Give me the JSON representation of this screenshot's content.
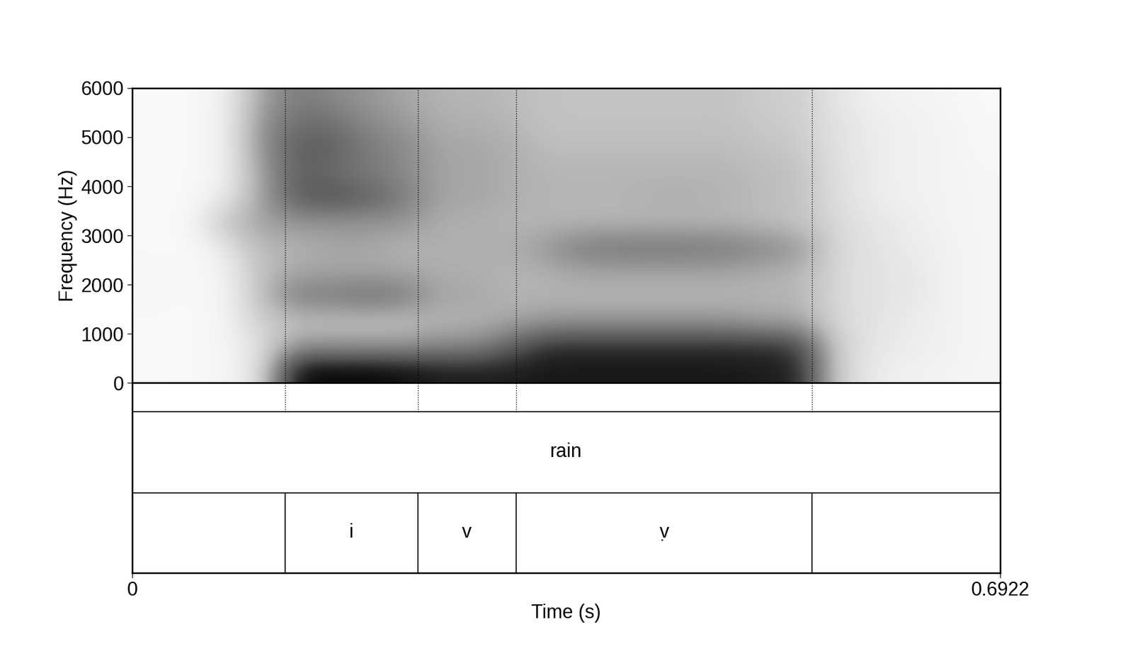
{
  "chart_data": {
    "type": "spectrogram",
    "xlabel": "Time (s)",
    "ylabel": "Frequency (Hz)",
    "xlim": [
      0,
      0.6922
    ],
    "ylim": [
      0,
      6000
    ],
    "xticks": [
      0,
      0.6922
    ],
    "yticks": [
      0,
      1000,
      2000,
      3000,
      4000,
      5000,
      6000
    ],
    "color": "Greys",
    "cell_range": [
      0,
      1
    ],
    "cells": [
      [
        0.05,
        0.05,
        0.08,
        0.2,
        0.95,
        0.98,
        0.98,
        0.95,
        0.9,
        0.9,
        0.9,
        0.92,
        0.92,
        0.92,
        0.92,
        0.92,
        0.92,
        0.9,
        0.88,
        0.3,
        0.15,
        0.12,
        0.1,
        0.08
      ],
      [
        0.05,
        0.05,
        0.08,
        0.2,
        0.5,
        0.5,
        0.5,
        0.5,
        0.55,
        0.55,
        0.7,
        0.85,
        0.85,
        0.85,
        0.85,
        0.85,
        0.85,
        0.85,
        0.8,
        0.3,
        0.18,
        0.15,
        0.12,
        0.08
      ],
      [
        0.05,
        0.05,
        0.08,
        0.3,
        0.35,
        0.35,
        0.35,
        0.35,
        0.4,
        0.4,
        0.45,
        0.5,
        0.5,
        0.5,
        0.5,
        0.5,
        0.5,
        0.45,
        0.45,
        0.25,
        0.2,
        0.15,
        0.12,
        0.08
      ],
      [
        0.08,
        0.05,
        0.08,
        0.35,
        0.6,
        0.6,
        0.65,
        0.6,
        0.45,
        0.45,
        0.4,
        0.4,
        0.4,
        0.4,
        0.4,
        0.4,
        0.4,
        0.4,
        0.4,
        0.25,
        0.2,
        0.18,
        0.12,
        0.08
      ],
      [
        0.08,
        0.05,
        0.1,
        0.35,
        0.45,
        0.45,
        0.45,
        0.45,
        0.42,
        0.42,
        0.4,
        0.42,
        0.45,
        0.45,
        0.45,
        0.45,
        0.45,
        0.42,
        0.4,
        0.25,
        0.2,
        0.18,
        0.12,
        0.08
      ],
      [
        0.05,
        0.05,
        0.15,
        0.4,
        0.4,
        0.45,
        0.45,
        0.4,
        0.42,
        0.42,
        0.42,
        0.5,
        0.6,
        0.62,
        0.62,
        0.62,
        0.6,
        0.55,
        0.5,
        0.25,
        0.2,
        0.15,
        0.12,
        0.08
      ],
      [
        0.05,
        0.05,
        0.35,
        0.45,
        0.5,
        0.5,
        0.5,
        0.5,
        0.42,
        0.42,
        0.4,
        0.4,
        0.4,
        0.4,
        0.4,
        0.4,
        0.4,
        0.38,
        0.35,
        0.25,
        0.18,
        0.15,
        0.1,
        0.08
      ],
      [
        0.05,
        0.05,
        0.15,
        0.45,
        0.7,
        0.75,
        0.7,
        0.6,
        0.45,
        0.45,
        0.42,
        0.4,
        0.4,
        0.4,
        0.42,
        0.42,
        0.4,
        0.38,
        0.35,
        0.22,
        0.15,
        0.12,
        0.1,
        0.08
      ],
      [
        0.05,
        0.05,
        0.1,
        0.45,
        0.7,
        0.65,
        0.6,
        0.55,
        0.45,
        0.45,
        0.42,
        0.4,
        0.4,
        0.4,
        0.4,
        0.4,
        0.4,
        0.38,
        0.35,
        0.22,
        0.15,
        0.12,
        0.1,
        0.08
      ],
      [
        0.05,
        0.05,
        0.1,
        0.5,
        0.7,
        0.7,
        0.6,
        0.55,
        0.45,
        0.45,
        0.42,
        0.38,
        0.38,
        0.38,
        0.38,
        0.38,
        0.38,
        0.35,
        0.32,
        0.2,
        0.15,
        0.12,
        0.1,
        0.06
      ],
      [
        0.05,
        0.05,
        0.1,
        0.5,
        0.65,
        0.65,
        0.55,
        0.5,
        0.42,
        0.42,
        0.4,
        0.35,
        0.35,
        0.35,
        0.35,
        0.35,
        0.35,
        0.32,
        0.3,
        0.2,
        0.15,
        0.12,
        0.1,
        0.06
      ],
      [
        0.05,
        0.05,
        0.1,
        0.45,
        0.6,
        0.55,
        0.5,
        0.45,
        0.4,
        0.4,
        0.38,
        0.35,
        0.35,
        0.35,
        0.35,
        0.35,
        0.35,
        0.3,
        0.3,
        0.18,
        0.12,
        0.1,
        0.08,
        0.05
      ]
    ],
    "tiers": [
      {
        "intervals": [
          {
            "start": 0,
            "end": 0.6922,
            "label": "rain"
          }
        ]
      },
      {
        "intervals": [
          {
            "start": 0,
            "end": 0.1222,
            "label": null
          },
          {
            "start": 0.1222,
            "end": 0.2277,
            "label": "i"
          },
          {
            "start": 0.2277,
            "end": 0.306,
            "label": "v"
          },
          {
            "start": 0.306,
            "end": 0.5424,
            "label": "ṿ"
          },
          {
            "start": 0.5424,
            "end": 0.6922,
            "label": null
          }
        ]
      }
    ]
  }
}
